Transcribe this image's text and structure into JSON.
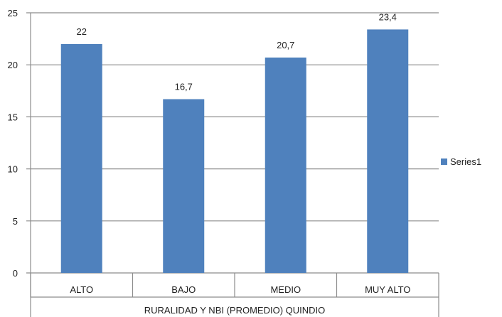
{
  "chart_data": {
    "type": "bar",
    "categories": [
      "ALTO",
      "BAJO",
      "MEDIO",
      "MUY ALTO"
    ],
    "series": [
      {
        "name": "Series1",
        "values": [
          22,
          16.7,
          20.7,
          23.4
        ],
        "color": "#4F81BD"
      }
    ],
    "data_labels": [
      "22",
      "16,7",
      "20,7",
      "23,4"
    ],
    "y_ticks": [
      "0",
      "5",
      "10",
      "15",
      "20",
      "25"
    ],
    "ylim": [
      0,
      25
    ],
    "grid": true,
    "group_label": "RURALIDAD Y NBI (PROMEDIO) QUINDIO",
    "legend_position": "right"
  }
}
